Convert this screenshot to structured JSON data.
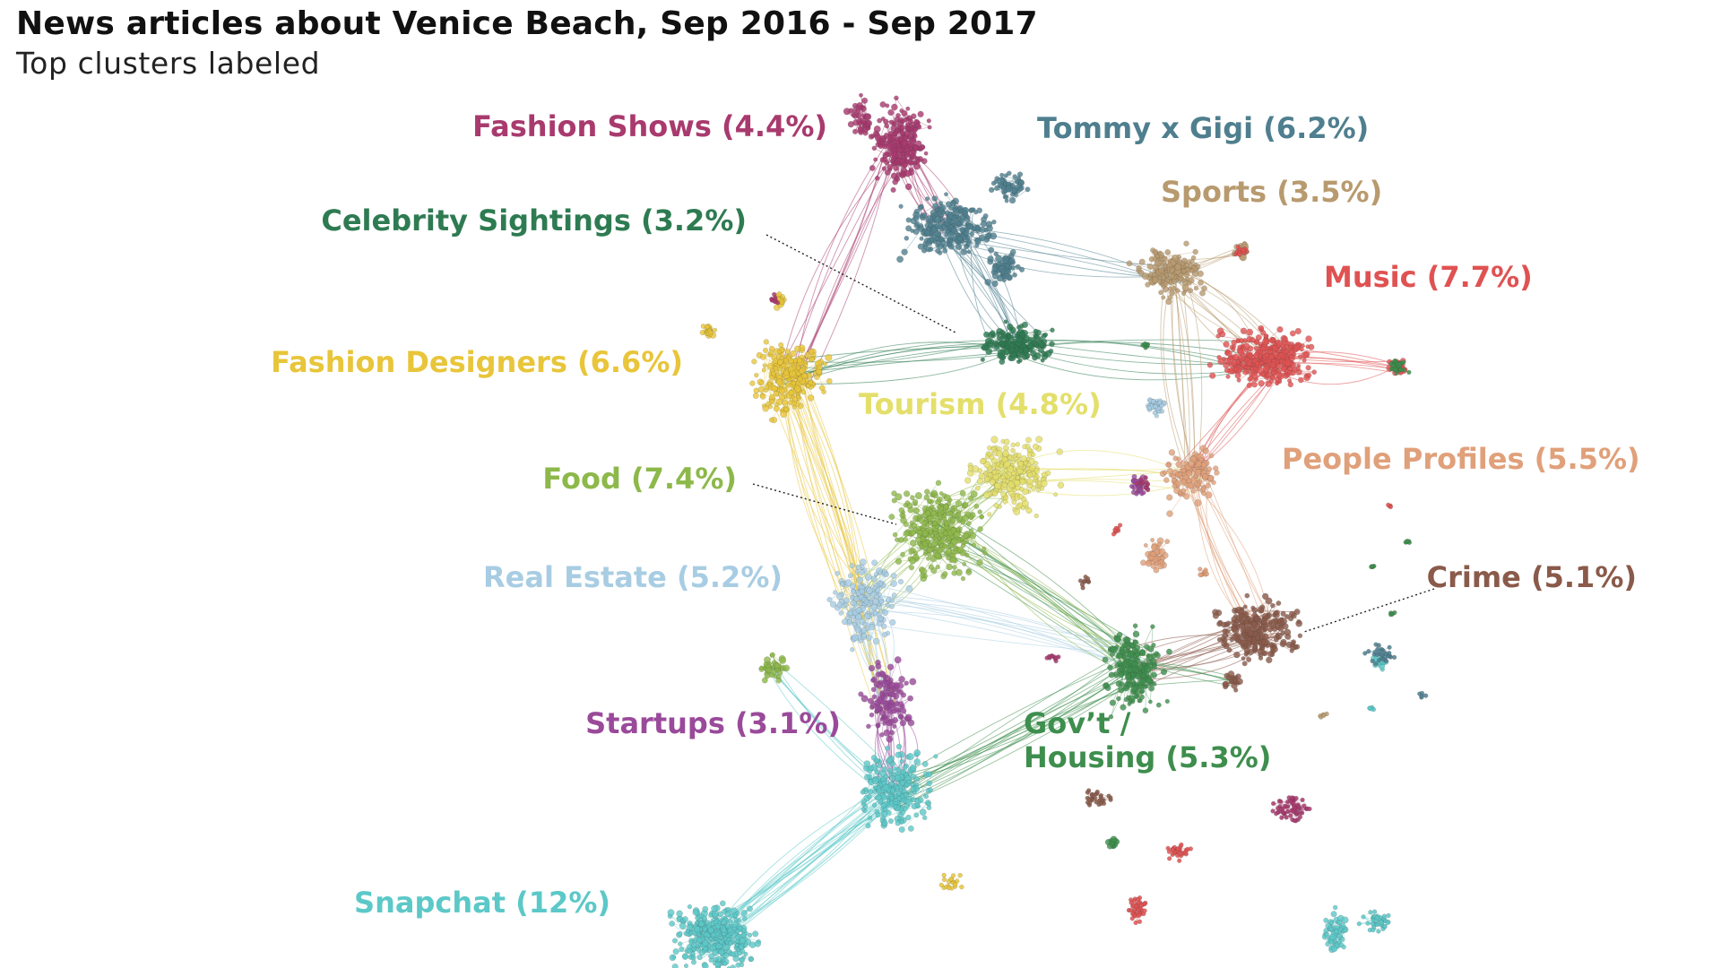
{
  "title": "News articles about Venice Beach, Sep 2016 - Sep 2017",
  "subtitle": "Top clusters labeled",
  "clusters": [
    {
      "id": "fashion-shows",
      "label": "Fashion Shows (4.4%)",
      "color": "#a83a6e"
    },
    {
      "id": "tommy-gigi",
      "label": "Tommy x Gigi (6.2%)",
      "color": "#4f7f8f"
    },
    {
      "id": "sports",
      "label": "Sports (3.5%)",
      "color": "#b89a6f"
    },
    {
      "id": "celebrity-sightings",
      "label": "Celebrity Sightings (3.2%)",
      "color": "#2e7b52"
    },
    {
      "id": "music",
      "label": "Music (7.7%)",
      "color": "#e05252"
    },
    {
      "id": "fashion-designers",
      "label": "Fashion Designers (6.6%)",
      "color": "#e8c53a"
    },
    {
      "id": "tourism",
      "label": "Tourism (4.8%)",
      "color": "#e3df6a"
    },
    {
      "id": "people-profiles",
      "label": "People Profiles (5.5%)",
      "color": "#e0a07a"
    },
    {
      "id": "food",
      "label": "Food (7.4%)",
      "color": "#8db84a"
    },
    {
      "id": "real-estate",
      "label": "Real Estate (5.2%)",
      "color": "#a8cde3"
    },
    {
      "id": "crime",
      "label": "Crime (5.1%)",
      "color": "#8a5a4a"
    },
    {
      "id": "startups",
      "label": "Startups (3.1%)",
      "color": "#9a4a9a"
    },
    {
      "id": "govt-housing",
      "label": "Gov’t / Housing (5.3%)",
      "label_lines": [
        "Gov’t /",
        "Housing (5.3%)"
      ],
      "color": "#3e8e4e"
    },
    {
      "id": "snapchat",
      "label": "Snapchat (12%)",
      "color": "#5cc8c8"
    }
  ]
}
